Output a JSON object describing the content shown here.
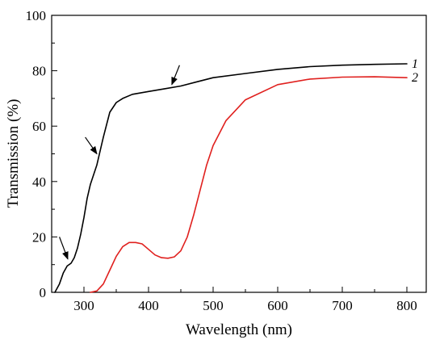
{
  "chart_data": {
    "type": "line",
    "title": "",
    "xlabel": "Wavelength (nm)",
    "ylabel": "Transmission (%)",
    "xlim": [
      250,
      830
    ],
    "ylim": [
      0,
      100
    ],
    "x_ticks": [
      300,
      400,
      500,
      600,
      700,
      800
    ],
    "y_ticks": [
      0,
      20,
      40,
      60,
      80,
      100
    ],
    "x_tick_labels": [
      "300",
      "400",
      "500",
      "600",
      "700",
      "800"
    ],
    "y_tick_labels": [
      "0",
      "20",
      "40",
      "60",
      "80",
      "100"
    ],
    "grid": false,
    "series": [
      {
        "name": "1",
        "color": "#000000",
        "x": [
          255,
          262,
          268,
          274,
          280,
          285,
          290,
          295,
          300,
          305,
          310,
          320,
          330,
          340,
          350,
          360,
          375,
          400,
          425,
          450,
          475,
          500,
          550,
          600,
          650,
          700,
          750,
          800
        ],
        "y": [
          0,
          3,
          7,
          9.5,
          10.5,
          12.5,
          16,
          21,
          27,
          34,
          39,
          46,
          56,
          65,
          68.5,
          70,
          71.5,
          72.5,
          73.5,
          74.5,
          76,
          77.5,
          79,
          80.5,
          81.5,
          82,
          82.3,
          82.5
        ]
      },
      {
        "name": "2",
        "color": "#e0201e",
        "x": [
          310,
          320,
          330,
          340,
          350,
          360,
          370,
          380,
          390,
          400,
          410,
          420,
          430,
          440,
          450,
          460,
          470,
          480,
          490,
          500,
          520,
          550,
          600,
          650,
          700,
          750,
          800
        ],
        "y": [
          0,
          0.5,
          3,
          8,
          13,
          16.5,
          18,
          18,
          17.5,
          15.5,
          13.5,
          12.5,
          12.3,
          12.8,
          15,
          20,
          28,
          37,
          46,
          53,
          62,
          69.5,
          75,
          77,
          77.7,
          77.8,
          77.5
        ]
      }
    ],
    "annotations": [
      {
        "type": "arrow",
        "from": [
          262,
          20
        ],
        "to": [
          275,
          12
        ]
      },
      {
        "type": "arrow",
        "from": [
          302,
          56
        ],
        "to": [
          320,
          50
        ]
      },
      {
        "type": "arrow",
        "from": [
          448,
          82
        ],
        "to": [
          436,
          75
        ]
      }
    ]
  }
}
